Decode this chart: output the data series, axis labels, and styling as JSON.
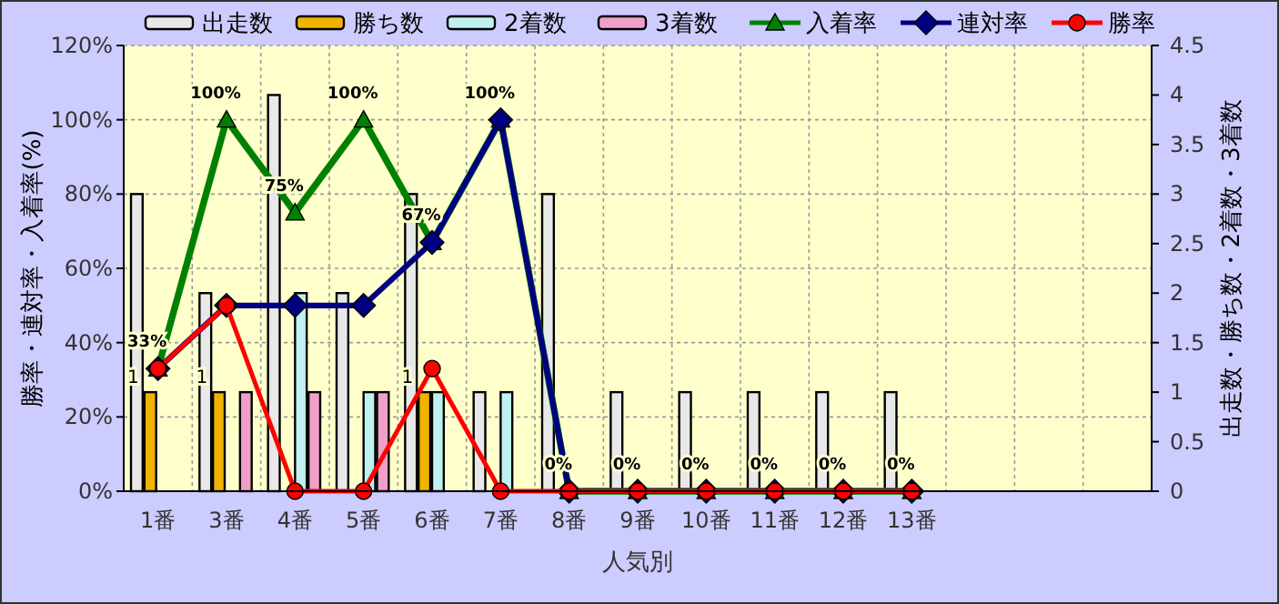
{
  "chart_data": {
    "type": "bar",
    "xlabel": "人気別",
    "ylabel": "勝率・連対率・入着率(%)",
    "y2label": "出走数・勝ち数・2着数・3着数",
    "categories": [
      "1番",
      "3番",
      "4番",
      "5番",
      "6番",
      "7番",
      "8番",
      "9番",
      "10番",
      "11番",
      "12番",
      "13番",
      null,
      null,
      null
    ],
    "series": [
      {
        "name": "出走数",
        "axis": "y2",
        "color": "#e8e8e8",
        "values": [
          3,
          2,
          4,
          2,
          3,
          1,
          3,
          1,
          1,
          1,
          1,
          1,
          null,
          null,
          null
        ]
      },
      {
        "name": "勝ち数",
        "axis": "y2",
        "color": "#f0b400",
        "values": [
          1,
          1,
          0,
          0,
          1,
          0,
          0,
          0,
          0,
          0,
          0,
          0,
          null,
          null,
          null
        ],
        "value_labels": [
          "1",
          "1",
          null,
          null,
          "1",
          null,
          null,
          null,
          null,
          null,
          null,
          null,
          null,
          null,
          null
        ]
      },
      {
        "name": "2着数",
        "axis": "y2",
        "color": "#c0f0f0",
        "values": [
          0,
          0,
          2,
          1,
          1,
          1,
          0,
          0,
          0,
          0,
          0,
          0,
          null,
          null,
          null
        ]
      },
      {
        "name": "3着数",
        "axis": "y2",
        "color": "#f0a0c8",
        "values": [
          0,
          1,
          1,
          1,
          0,
          0,
          0,
          0,
          0,
          0,
          0,
          0,
          null,
          null,
          null
        ]
      },
      {
        "name": "入着率",
        "type": "line",
        "color": "#008000",
        "marker": "triangle",
        "values": [
          33,
          100,
          75,
          100,
          67,
          100,
          0,
          0,
          0,
          0,
          0,
          0,
          null,
          null,
          null
        ],
        "value_labels": [
          "33%",
          "100%",
          "75%",
          "100%",
          "67%",
          "100%",
          "0%",
          "0%",
          "0%",
          "0%",
          "0%",
          "0%",
          null,
          null,
          null
        ]
      },
      {
        "name": "連対率",
        "type": "line",
        "color": "#000080",
        "marker": "diamond",
        "values": [
          33,
          50,
          50,
          50,
          67,
          100,
          0,
          0,
          0,
          0,
          0,
          0,
          null,
          null,
          null
        ]
      },
      {
        "name": "勝率",
        "type": "line",
        "color": "#ff0000",
        "marker": "circle",
        "values": [
          33,
          50,
          0,
          0,
          33,
          0,
          0,
          0,
          0,
          0,
          0,
          0,
          null,
          null,
          null
        ]
      }
    ],
    "ylim": [
      0,
      120
    ],
    "yticks": [
      {
        "value": 0,
        "label": "0%"
      },
      {
        "value": 20,
        "label": "20%"
      },
      {
        "value": 40,
        "label": "40%"
      },
      {
        "value": 60,
        "label": "60%"
      },
      {
        "value": 80,
        "label": "80%"
      },
      {
        "value": 100,
        "label": "100%"
      },
      {
        "value": 120,
        "label": "120%"
      }
    ],
    "y2lim": [
      0,
      4.5
    ],
    "y2ticks": [
      0,
      0.5,
      1,
      1.5,
      2,
      2.5,
      3,
      3.5,
      4,
      4.5
    ],
    "grid": true,
    "legend": "top"
  }
}
